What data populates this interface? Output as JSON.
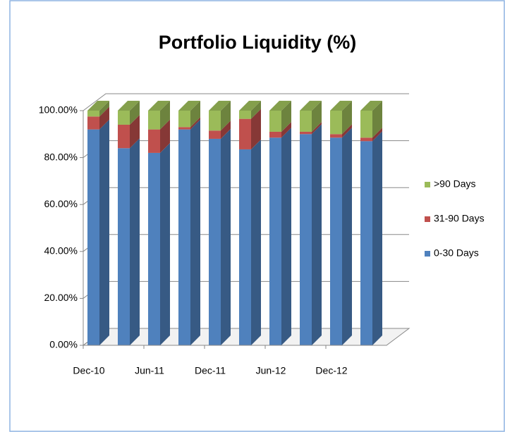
{
  "chart_data": {
    "type": "bar3d_stacked",
    "title": "Portfolio Liquidity (%)",
    "categories": [
      "Dec-10",
      null,
      "Jun-11",
      null,
      "Dec-11",
      null,
      "Jun-12",
      null,
      "Dec-12",
      null
    ],
    "series": [
      {
        "name": "0-30 Days",
        "color": "#4f81bd",
        "values": [
          92,
          84,
          82,
          92,
          88,
          83.5,
          88.5,
          90,
          88.5,
          87
        ]
      },
      {
        "name": "31-90 Days",
        "color": "#c0504d",
        "values": [
          5.5,
          10,
          10,
          1,
          3.5,
          13,
          2.5,
          1,
          1.5,
          1.5
        ]
      },
      {
        "name": ">90 Days",
        "color": "#9bbb59",
        "values": [
          2.5,
          6,
          8,
          7,
          8.5,
          3.5,
          9,
          9,
          10,
          11.5
        ]
      }
    ],
    "ylim": [
      0,
      100
    ],
    "yticks": [
      {
        "value": 0,
        "label": "0.00%"
      },
      {
        "value": 20,
        "label": "20.00%"
      },
      {
        "value": 40,
        "label": "40.00%"
      },
      {
        "value": 60,
        "label": "60.00%"
      },
      {
        "value": 80,
        "label": "80.00%"
      },
      {
        "value": 100,
        "label": "100.00%"
      }
    ],
    "grid": true,
    "legend": "right"
  }
}
